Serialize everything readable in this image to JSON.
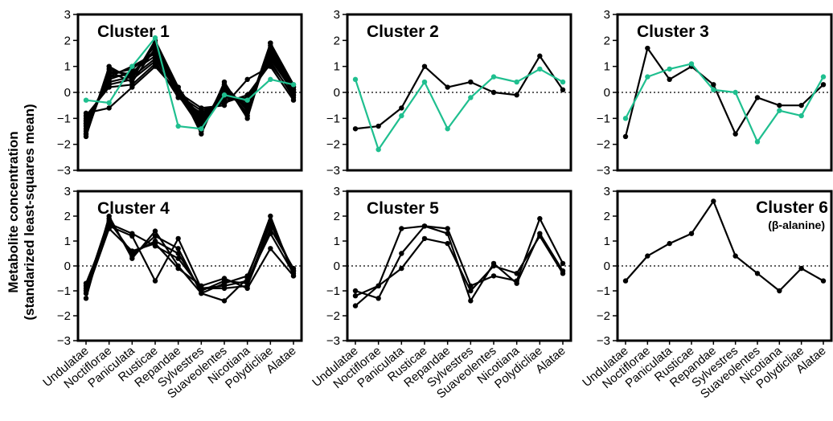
{
  "figure": {
    "ylabel_line1": "Metabolite concentration",
    "ylabel_line2": "(standarized least-squares mean)"
  },
  "colors": {
    "black": "#000000",
    "highlight": "#1fbf8f"
  },
  "chart_data": {
    "type": "line",
    "categories": [
      "Undulatae",
      "Noctiflorae",
      "Paniculata",
      "Rusticae",
      "Repandae",
      "Sylvestres",
      "Suaveolentes",
      "Nicotiana",
      "Polydicliae",
      "Alatae"
    ],
    "ylim": [
      -3,
      3
    ],
    "yticks": [
      -3,
      -2,
      -1,
      0,
      1,
      2,
      3
    ],
    "reference_line": 0,
    "panels": [
      {
        "title": "Cluster 1",
        "subtitle": "",
        "series": [
          {
            "color": "black",
            "values": [
              -1.7,
              1.0,
              0.5,
              2.0,
              0.2,
              -1.6,
              0.4,
              -1.0,
              1.9,
              0.2
            ]
          },
          {
            "color": "black",
            "values": [
              -1.6,
              0.9,
              0.6,
              1.9,
              0.1,
              -1.5,
              0.3,
              -0.9,
              1.8,
              0.1
            ]
          },
          {
            "color": "black",
            "values": [
              -1.5,
              0.8,
              0.7,
              1.8,
              0.0,
              -1.3,
              0.2,
              -0.8,
              1.7,
              0.0
            ]
          },
          {
            "color": "black",
            "values": [
              -1.4,
              0.7,
              0.9,
              1.6,
              -0.1,
              -1.2,
              0.1,
              -0.6,
              1.6,
              -0.1
            ]
          },
          {
            "color": "black",
            "values": [
              -1.3,
              0.6,
              1.0,
              1.5,
              0.2,
              -1.1,
              0.0,
              -0.5,
              1.5,
              0.2
            ]
          },
          {
            "color": "black",
            "values": [
              -1.2,
              0.5,
              0.8,
              1.4,
              0.1,
              -1.0,
              -0.1,
              -0.4,
              1.4,
              0.1
            ]
          },
          {
            "color": "black",
            "values": [
              -1.1,
              0.4,
              0.6,
              1.3,
              0.0,
              -0.9,
              -0.2,
              -0.3,
              1.3,
              0.0
            ]
          },
          {
            "color": "black",
            "values": [
              -1.0,
              0.3,
              0.5,
              1.2,
              -0.2,
              -0.8,
              -0.3,
              -0.2,
              1.2,
              -0.2
            ]
          },
          {
            "color": "black",
            "values": [
              -0.9,
              0.2,
              0.3,
              1.1,
              -0.1,
              -0.7,
              -0.4,
              -0.1,
              1.1,
              -0.1
            ]
          },
          {
            "color": "black",
            "values": [
              -0.8,
              -0.6,
              0.2,
              1.0,
              0.0,
              -0.6,
              -0.5,
              0.5,
              1.0,
              -0.3
            ]
          },
          {
            "color": "black",
            "values": [
              -1.6,
              0.8,
              0.4,
              1.7,
              -0.1,
              -1.4,
              0.3,
              -0.7,
              1.9,
              0.3
            ]
          },
          {
            "color": "black",
            "values": [
              -1.2,
              0.6,
              0.7,
              1.6,
              0.1,
              -1.2,
              -0.1,
              -0.5,
              1.4,
              0.1
            ]
          },
          {
            "color": "highlight",
            "values": [
              -0.3,
              -0.4,
              1.0,
              2.1,
              -1.3,
              -1.4,
              -0.1,
              -0.3,
              0.5,
              0.3
            ]
          }
        ]
      },
      {
        "title": "Cluster 2",
        "subtitle": "",
        "series": [
          {
            "color": "black",
            "values": [
              -1.4,
              -1.3,
              -0.6,
              1.0,
              0.2,
              0.4,
              0.0,
              -0.1,
              1.4,
              0.1
            ]
          },
          {
            "color": "highlight",
            "values": [
              0.5,
              -2.2,
              -0.9,
              0.4,
              -1.4,
              -0.2,
              0.6,
              0.4,
              0.9,
              0.4
            ]
          }
        ]
      },
      {
        "title": "Cluster 3",
        "subtitle": "",
        "series": [
          {
            "color": "black",
            "values": [
              -1.7,
              1.7,
              0.5,
              1.0,
              0.3,
              -1.6,
              -0.2,
              -0.5,
              -0.5,
              0.3
            ]
          },
          {
            "color": "highlight",
            "values": [
              -1.0,
              0.6,
              0.9,
              1.1,
              0.1,
              0.0,
              -1.9,
              -0.7,
              -0.9,
              0.6
            ]
          }
        ]
      },
      {
        "title": "Cluster 4",
        "subtitle": "",
        "series": [
          {
            "color": "black",
            "values": [
              -1.3,
              2.0,
              0.3,
              1.4,
              0.0,
              -1.1,
              -1.4,
              -0.5,
              2.0,
              -0.4
            ]
          },
          {
            "color": "black",
            "values": [
              -1.0,
              1.8,
              0.5,
              1.0,
              0.5,
              -1.0,
              -0.6,
              -0.7,
              1.7,
              -0.2
            ]
          },
          {
            "color": "black",
            "values": [
              -0.8,
              1.7,
              1.3,
              0.8,
              0.3,
              -0.9,
              -0.9,
              -0.8,
              1.5,
              -0.1
            ]
          },
          {
            "color": "black",
            "values": [
              -0.7,
              1.6,
              1.2,
              -0.6,
              1.1,
              -0.9,
              -0.8,
              -0.6,
              1.3,
              -0.3
            ]
          },
          {
            "color": "black",
            "values": [
              -0.9,
              1.9,
              0.4,
              1.2,
              0.7,
              -1.1,
              -0.7,
              -0.4,
              1.8,
              -0.2
            ]
          },
          {
            "color": "black",
            "values": [
              -1.1,
              1.5,
              0.6,
              0.9,
              -0.1,
              -0.8,
              -0.5,
              -0.9,
              0.7,
              -0.4
            ]
          }
        ]
      },
      {
        "title": "Cluster 5",
        "subtitle": "",
        "series": [
          {
            "color": "black",
            "values": [
              -1.6,
              -0.8,
              1.5,
              1.6,
              1.5,
              -0.8,
              -0.4,
              -0.6,
              1.9,
              0.1
            ]
          },
          {
            "color": "black",
            "values": [
              -1.0,
              -1.3,
              0.5,
              1.6,
              1.3,
              -1.4,
              0.1,
              -0.7,
              1.3,
              -0.2
            ]
          },
          {
            "color": "black",
            "values": [
              -1.2,
              -0.8,
              -0.1,
              1.1,
              0.9,
              -1.0,
              0.0,
              -0.3,
              1.2,
              -0.3
            ]
          }
        ]
      },
      {
        "title": "Cluster 6",
        "subtitle": "(β-alanine)",
        "series": [
          {
            "color": "black",
            "values": [
              -0.6,
              0.4,
              0.9,
              1.3,
              2.6,
              0.4,
              -0.3,
              -1.0,
              -0.1,
              -0.6
            ]
          }
        ]
      }
    ]
  }
}
